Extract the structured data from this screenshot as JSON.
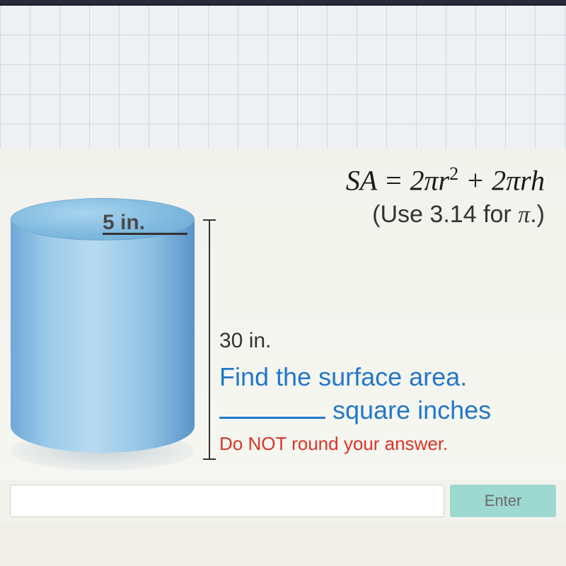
{
  "cylinder": {
    "radius_label": "5 in.",
    "height_label": "30 in.",
    "fill_gradient": [
      "#6fa8d8",
      "#9ccaea",
      "#b8daf0",
      "#8fc2e5",
      "#5a94c8"
    ],
    "top_gradient": [
      "#a8d4ee",
      "#7db8de",
      "#6aa5d0"
    ]
  },
  "formula": {
    "lhs": "SA",
    "equals": "=",
    "rhs_part1": "2πr",
    "rhs_exp": "2",
    "rhs_part2": " + 2πrh",
    "note_prefix": "(Use ",
    "pi_value": "3.14",
    "note_mid": " for ",
    "pi_symbol": "π",
    "note_suffix": ".)"
  },
  "prompt": {
    "line1": "Find the surface area.",
    "unit": " square inches"
  },
  "warning": "Do NOT round your answer.",
  "enter_button": "Enter",
  "colors": {
    "prompt_text": "#2277cc",
    "warning_text": "#dd3322",
    "label_text": "#333333",
    "formula_text": "#1a1a1a",
    "button_bg": "#9dd9d0",
    "button_text": "#6a6a6a",
    "background": "#f5f5f0"
  },
  "typography": {
    "formula_fontsize": 40,
    "prompt_fontsize": 36,
    "label_fontsize": 30,
    "warning_fontsize": 26,
    "button_fontsize": 22
  }
}
